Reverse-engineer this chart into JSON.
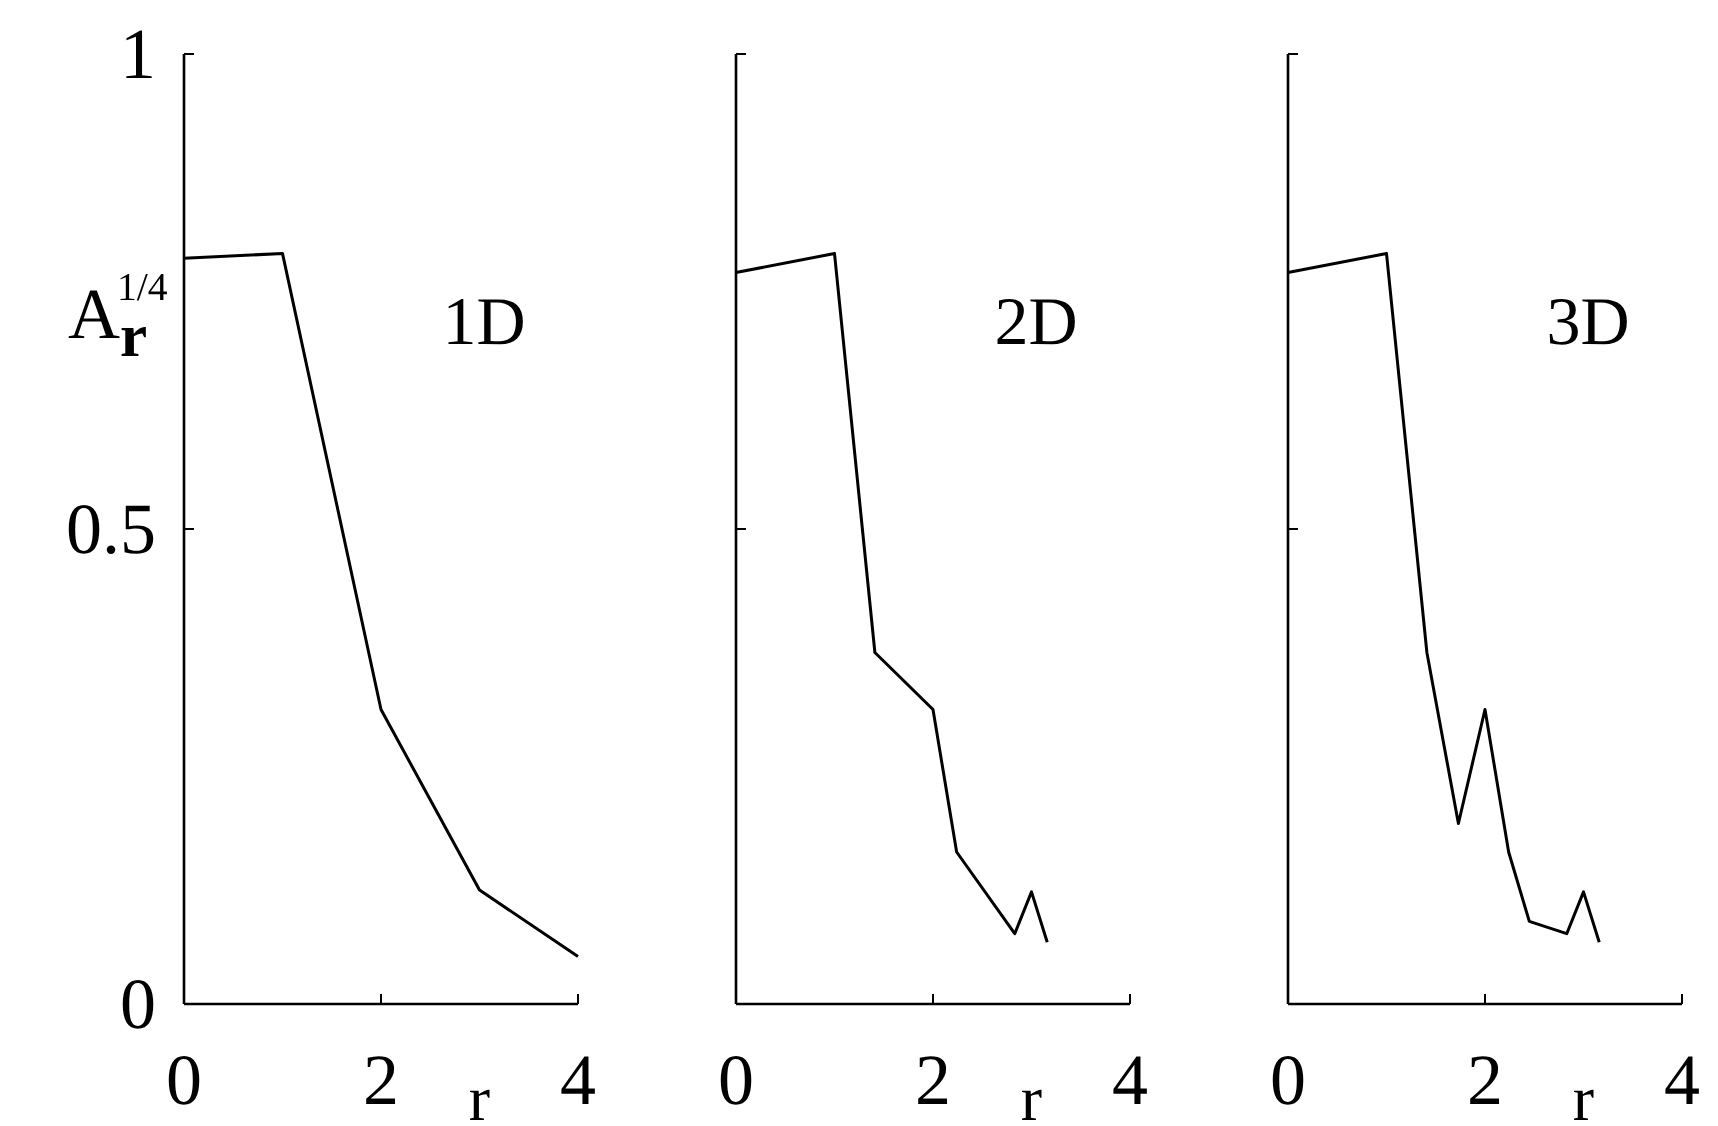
{
  "chart_data": [
    {
      "type": "line",
      "ylabel": "A$_{r}$$^{1/4}$",
      "xlabel": "r",
      "annotations": [
        "1D"
      ],
      "x": [
        0,
        1,
        2,
        3,
        4
      ],
      "series": [
        {
          "color": "#000000",
          "values": [
            0.785,
            0.79,
            0.31,
            0.12,
            0.05
          ]
        }
      ],
      "xlim": [
        0,
        4
      ],
      "ylim": [
        0,
        1
      ],
      "xticks": [
        0,
        2,
        4
      ],
      "yticks": [
        0,
        0.5,
        1
      ]
    },
    {
      "type": "line",
      "xlabel": "r",
      "annotations": [
        "2D"
      ],
      "x": [
        0,
        1,
        1.41,
        2,
        2.24,
        2.83,
        3,
        3.16
      ],
      "series": [
        {
          "color": "#000000",
          "values": [
            0.77,
            0.79,
            0.37,
            0.31,
            0.16,
            0.074,
            0.118,
            0.065
          ]
        }
      ],
      "xlim": [
        0,
        4
      ],
      "ylim": [
        0,
        1
      ],
      "xticks": [
        0,
        2,
        4
      ],
      "yticks": [
        0,
        0.5,
        1
      ],
      "tick_labels": "x"
    },
    {
      "type": "line",
      "xlabel": "r",
      "annotations": [
        "3D"
      ],
      "x": [
        0,
        1,
        1.41,
        1.73,
        2,
        2.24,
        2.45,
        2.83,
        3,
        3.16
      ],
      "series": [
        {
          "color": "#000000",
          "values": [
            0.77,
            0.79,
            0.37,
            0.19,
            0.31,
            0.16,
            0.087,
            0.074,
            0.118,
            0.065
          ]
        }
      ],
      "xlim": [
        0,
        4
      ],
      "ylim": [
        0,
        1
      ],
      "xticks": [
        0,
        2,
        4
      ],
      "yticks": [
        0,
        0.5,
        1
      ],
      "tick_labels": "x"
    }
  ]
}
